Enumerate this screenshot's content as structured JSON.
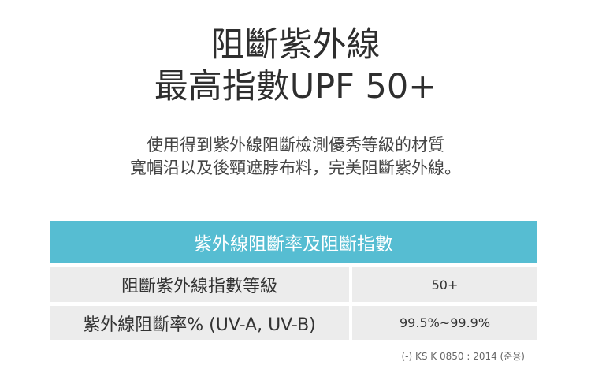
{
  "title": {
    "line1": "阻斷紫外線",
    "line2": "最高指數UPF 50+"
  },
  "subtitle": {
    "line1": "使用得到紫外線阻斷檢測優秀等級的材質",
    "line2": "寬帽沿以及後頸遮脖布料，完美阻斷紫外線。"
  },
  "table": {
    "header": "紫外線阻斷率及阻斷指數",
    "rows": [
      {
        "label": "阻斷紫外線指數等級",
        "value": "50+"
      },
      {
        "label": "紫外線阻斷率% (UV-A, UV-B)",
        "value": "99.5%~99.9%"
      }
    ],
    "note": "(-) KS K 0850 : 2014 (준용)"
  },
  "colors": {
    "header_bg": "#56bdd2",
    "row_bg": "#ececec"
  }
}
